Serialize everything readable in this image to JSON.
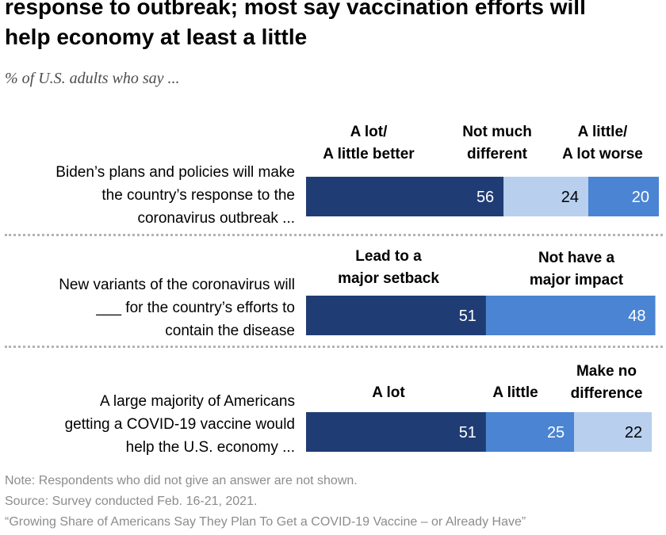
{
  "header": {
    "title_line1": "response to outbreak; most say vaccination efforts will",
    "title_line2": "help economy at least a little",
    "subtitle": "% of U.S. adults who say ..."
  },
  "colors": {
    "dark_blue": "#1f3d74",
    "mid_blue": "#4a84d2",
    "light_blue": "#b8cfee"
  },
  "chart_data": {
    "type": "bar",
    "orientation": "horizontal",
    "stacked": true,
    "xlim": [
      0,
      100
    ],
    "rows": [
      {
        "label_lines": [
          "Biden’s plans and policies will make",
          "the country’s response to the",
          "coronavirus outbreak ..."
        ],
        "segments": [
          {
            "name_lines": [
              "A lot/",
              "A little better"
            ],
            "value": 56,
            "color": "dark_blue"
          },
          {
            "name_lines": [
              "Not much",
              "different"
            ],
            "value": 24,
            "color": "light_blue"
          },
          {
            "name_lines": [
              "A little/",
              "A lot worse"
            ],
            "value": 20,
            "color": "mid_blue"
          }
        ]
      },
      {
        "label_lines": [
          "New variants of the coronavirus will",
          "___ for the country’s efforts to",
          "contain the disease"
        ],
        "segments": [
          {
            "name_lines": [
              "Lead to a",
              "major setback"
            ],
            "value": 51,
            "color": "dark_blue"
          },
          {
            "name_lines": [
              "Not have a",
              "major impact"
            ],
            "value": 48,
            "color": "mid_blue"
          }
        ]
      },
      {
        "label_lines": [
          "A large majority of Americans",
          "getting a COVID-19 vaccine would",
          "help the U.S. economy ..."
        ],
        "segments": [
          {
            "name_lines": [
              "A lot"
            ],
            "value": 51,
            "color": "dark_blue"
          },
          {
            "name_lines": [
              "A little"
            ],
            "value": 25,
            "color": "mid_blue"
          },
          {
            "name_lines": [
              "Make no",
              "difference"
            ],
            "value": 22,
            "color": "light_blue"
          }
        ]
      }
    ]
  },
  "notes": {
    "note": "Note: Respondents who did not give an answer are not shown.",
    "source": "Source: Survey conducted Feb. 16-21, 2021.",
    "report": "“Growing Share of Americans Say They Plan To Get a COVID-19 Vaccine – or Already Have”"
  }
}
